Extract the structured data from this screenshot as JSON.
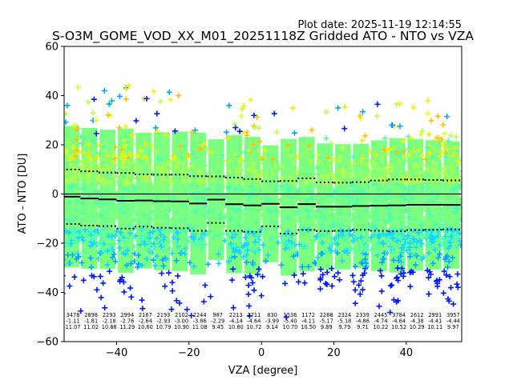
{
  "chart_data": {
    "type": "scatter",
    "title": "S-O3M_GOME_VOD_XX_M01_20251118Z Gridded ATO - NTO vs VZA",
    "plot_date": "Plot date: 2025-11-19 12:14:55",
    "xlabel": "VZA [degree]",
    "ylabel": "ATO - NTO [DU]",
    "xlim": [
      -54.5,
      55.3
    ],
    "ylim": [
      -60,
      60
    ],
    "xticks": [
      -40,
      -20,
      0,
      20,
      40
    ],
    "xtick_labels": [
      "−40",
      "−20",
      "0",
      "20",
      "40"
    ],
    "yticks": [
      -60,
      -40,
      -20,
      0,
      20,
      40,
      60
    ],
    "ytick_labels": [
      "−60",
      "−40",
      "−20",
      "0",
      "20",
      "40",
      "60"
    ],
    "marker": "plus",
    "zero_line": 0,
    "bins": {
      "edges_start": -55,
      "width": 5,
      "counts": [
        "3478",
        "2898",
        "2293",
        "2994",
        "2167",
        "2193",
        "2102",
        "2244",
        "987",
        "2213",
        "3711",
        "830",
        "1536",
        "1172",
        "2268",
        "2324",
        "2339",
        "2445",
        "3784",
        "2612",
        "2991",
        "3957"
      ],
      "means": [
        "-1.11",
        "-1.81",
        "-2.18",
        "-2.76",
        "-2.64",
        "-2.93",
        "-3.00",
        "-3.86",
        "-2.29",
        "-4.14",
        "-4.64",
        "-3.99",
        "-5.40",
        "-4.11",
        "-5.17",
        "-5.18",
        "-4.86",
        "-4.74",
        "-4.64",
        "-4.38",
        "-4.41",
        "-4.44"
      ],
      "stds": [
        "11.07",
        "11.02",
        "10.88",
        "11.29",
        "10.60",
        "10.79",
        "10.90",
        "11.08",
        "9.45",
        "10.80",
        "10.72",
        "9.14",
        "10.70",
        "10.50",
        "9.89",
        "9.79",
        "9.71",
        "10.22",
        "10.52",
        "10.29",
        "10.11",
        "9.97"
      ]
    },
    "series": [
      {
        "name": "mean",
        "style": "solid-step",
        "color": "#000000"
      },
      {
        "name": "mean+std",
        "style": "dotted-step",
        "color": "#000000"
      },
      {
        "name": "mean-std",
        "style": "dotted-step",
        "color": "#000000"
      }
    ],
    "point_colors": [
      "#0018ff",
      "#00a8ff",
      "#16d4ff",
      "#4cffb0",
      "#7dff80",
      "#b8ff48",
      "#e8ff10",
      "#ffe600",
      "#ffc000"
    ]
  }
}
